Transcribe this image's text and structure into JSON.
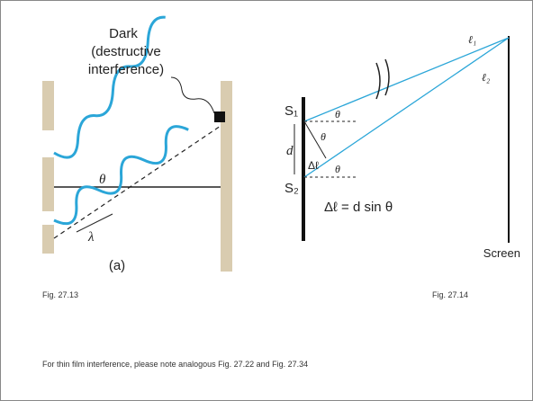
{
  "figure_a": {
    "dark": "Dark",
    "dark_line2": "(destructive",
    "dark_line3": "interference)",
    "theta": "θ",
    "lambda": "λ",
    "caption": "(a)"
  },
  "figure_b": {
    "s1": "S₁",
    "s2": "S₂",
    "d": "d",
    "theta_top": "θ",
    "theta_mid": "θ",
    "theta_bottom": "θ",
    "delta_l": "Δℓ",
    "l1": "ℓ₁",
    "l2": "ℓ₂",
    "equation": "Δℓ = d sin θ",
    "screen": "Screen"
  },
  "captions": {
    "left": "Fig. 27.13",
    "right": "Fig. 27.14"
  },
  "note": "For thin film interference, please note analogous Fig. 27.22  and Fig. 27.34"
}
